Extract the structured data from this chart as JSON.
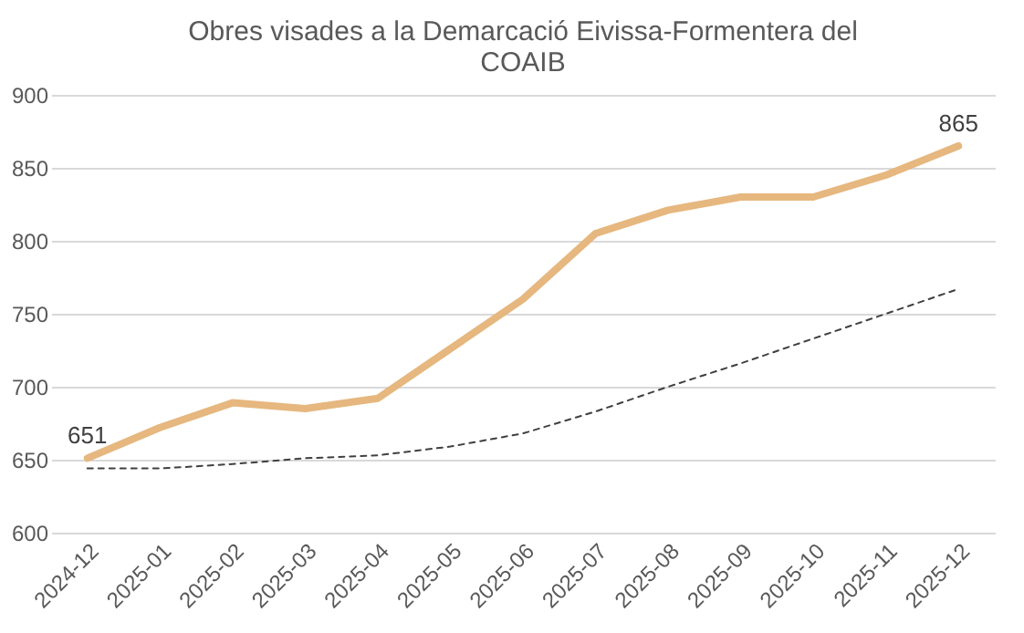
{
  "chart_data": {
    "type": "line",
    "title": [
      "Obres visades a la Demarcació Eivissa-Formentera del",
      "COAIB"
    ],
    "categories": [
      "2024-12",
      "2025-01",
      "2025-02",
      "2025-03",
      "2025-04",
      "2025-05",
      "2025-06",
      "2025-07",
      "2025-08",
      "2025-09",
      "2025-10",
      "2025-11",
      "2025-12"
    ],
    "series": [
      {
        "color": "#e6b77e",
        "values": [
          651,
          672,
          689,
          685,
          692,
          726,
          760,
          805,
          821,
          830,
          830,
          845,
          865
        ],
        "value_labels": [
          "651",
          null,
          null,
          null,
          null,
          null,
          null,
          null,
          null,
          null,
          null,
          null,
          "865"
        ]
      },
      {
        "color": "#404040",
        "line_style": "dashed",
        "values": [
          644,
          644,
          647,
          651,
          653,
          659,
          668,
          683,
          700,
          716,
          733,
          750,
          767
        ]
      }
    ],
    "ylim": [
      600,
      900
    ],
    "yticks": [
      600,
      650,
      700,
      750,
      800,
      850,
      900
    ],
    "grid": "y",
    "marker": "none"
  }
}
